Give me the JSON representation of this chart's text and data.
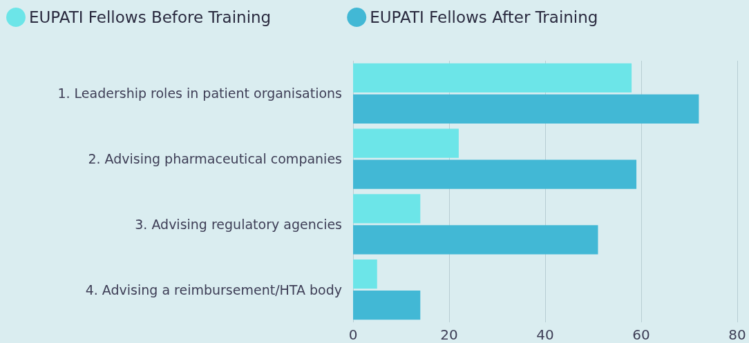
{
  "chart_data": {
    "type": "bar",
    "orientation": "horizontal",
    "categories": [
      "1. Leadership roles in patient organisations",
      "2. Advising pharmaceutical companies",
      "3. Advising regulatory agencies",
      "4. Advising a reimbursement/HTA body"
    ],
    "series": [
      {
        "name": "EUPATI Fellows Before Training",
        "color": "#6ce5e8",
        "values": [
          58,
          22,
          14,
          5
        ]
      },
      {
        "name": "EUPATI Fellows After Training",
        "color": "#42b8d5",
        "values": [
          72,
          59,
          51,
          14
        ]
      }
    ],
    "xlim": [
      0,
      80
    ],
    "xticks": [
      0,
      20,
      40,
      60,
      80
    ],
    "grid": "x",
    "legend": "top left"
  }
}
